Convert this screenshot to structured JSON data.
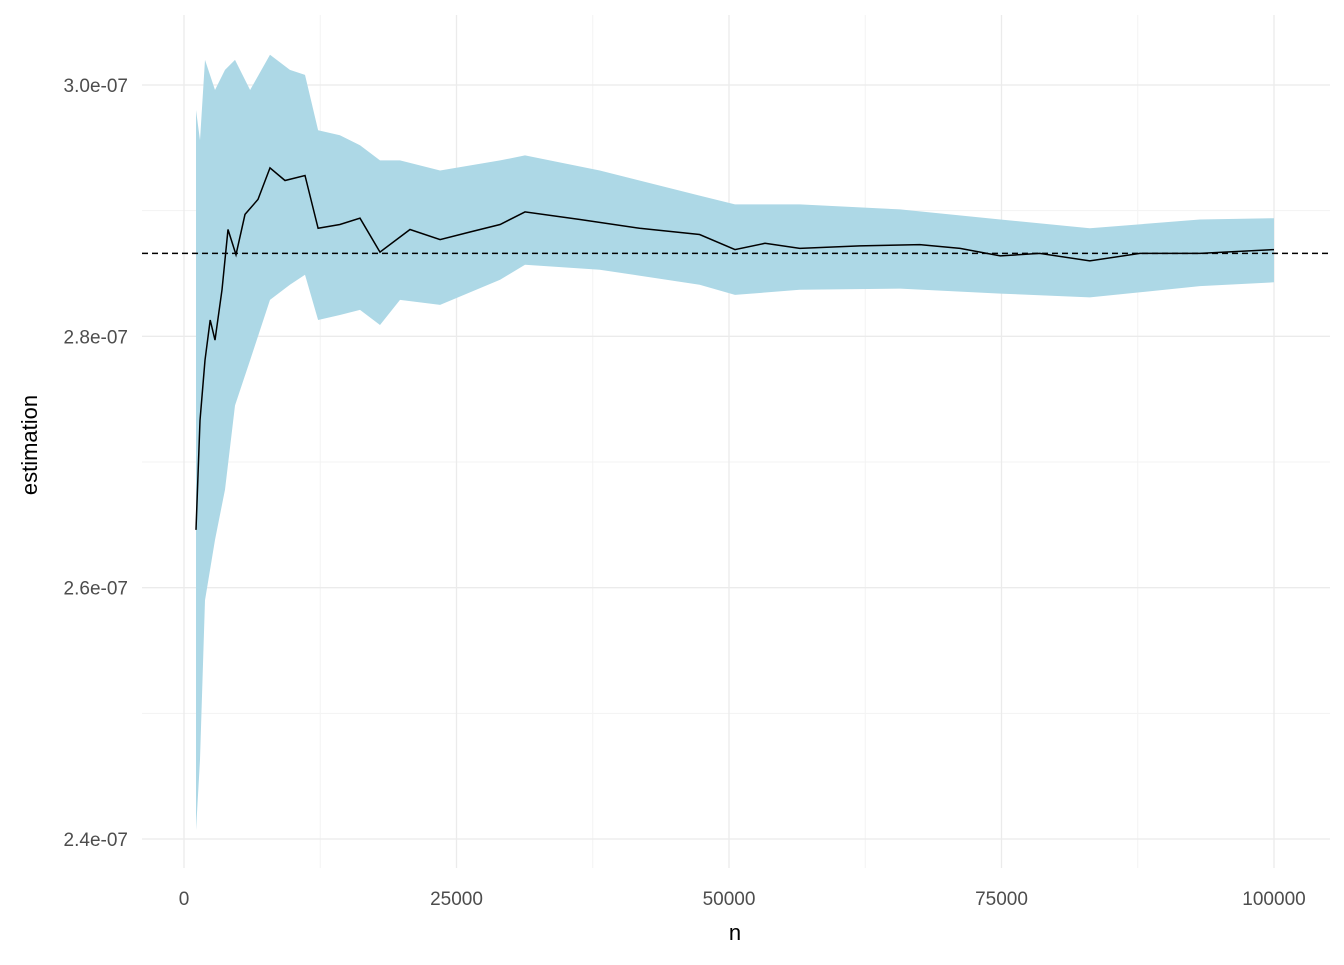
{
  "chart_data": {
    "type": "line",
    "title": "",
    "xlabel": "n",
    "ylabel": "estimation",
    "xlim": [
      0,
      100000
    ],
    "ylim": [
      2.4e-07,
      3e-07
    ],
    "x_ticks": [
      0,
      25000,
      50000,
      75000,
      100000
    ],
    "x_tick_labels": [
      "0",
      "25000",
      "50000",
      "75000",
      "100000"
    ],
    "y_ticks": [
      2.4e-07,
      2.6e-07,
      2.8e-07,
      3e-07
    ],
    "y_tick_labels": [
      "2.4e-07",
      "2.6e-07",
      "2.8e-07",
      "3.0e-07"
    ],
    "grid": true,
    "reference_line": {
      "value": 2.866e-07,
      "style": "dashed",
      "color": "#000000"
    },
    "colors": {
      "band": "#ADD8E6",
      "line": "#000000",
      "grid": "#EBEBEB"
    },
    "series": [
      {
        "name": "estimation",
        "x": [
          1100,
          1470,
          1930,
          2400,
          2840,
          3490,
          4040,
          4770,
          5600,
          6790,
          7890,
          9270,
          11100,
          12300,
          14300,
          16150,
          17980,
          20730,
          23500,
          26240,
          29000,
          31280,
          36330,
          41800,
          47300,
          50550,
          53300,
          56500,
          62000,
          67500,
          71200,
          74900,
          78500,
          83100,
          87700,
          93200,
          100000
        ],
        "y": [
          2.646e-07,
          2.733e-07,
          2.781e-07,
          2.813e-07,
          2.797e-07,
          2.837e-07,
          2.885e-07,
          2.865e-07,
          2.897e-07,
          2.909e-07,
          2.934e-07,
          2.924e-07,
          2.928e-07,
          2.886e-07,
          2.889e-07,
          2.894e-07,
          2.867e-07,
          2.885e-07,
          2.877e-07,
          2.883e-07,
          2.889e-07,
          2.899e-07,
          2.893e-07,
          2.886e-07,
          2.881e-07,
          2.869e-07,
          2.874e-07,
          2.87e-07,
          2.872e-07,
          2.873e-07,
          2.87e-07,
          2.864e-07,
          2.866e-07,
          2.86e-07,
          2.866e-07,
          2.866e-07,
          2.869e-07
        ]
      },
      {
        "name": "confidence-band",
        "x": [
          1100,
          1470,
          1930,
          2840,
          3760,
          4680,
          6060,
          7890,
          9720,
          11100,
          12300,
          14300,
          16150,
          17980,
          19820,
          23500,
          29000,
          31280,
          38150,
          47300,
          50550,
          56500,
          65690,
          74900,
          83100,
          93200,
          100000
        ],
        "lower": [
          2.407e-07,
          2.463e-07,
          2.59e-07,
          2.638e-07,
          2.678e-07,
          2.745e-07,
          2.781e-07,
          2.829e-07,
          2.841e-07,
          2.849e-07,
          2.813e-07,
          2.817e-07,
          2.821e-07,
          2.809e-07,
          2.829e-07,
          2.825e-07,
          2.845e-07,
          2.857e-07,
          2.853e-07,
          2.841e-07,
          2.833e-07,
          2.837e-07,
          2.838e-07,
          2.834e-07,
          2.831e-07,
          2.84e-07,
          2.843e-07
        ],
        "upper": [
          2.98e-07,
          2.956e-07,
          3.02e-07,
          2.996e-07,
          3.012e-07,
          3.02e-07,
          2.996e-07,
          3.024e-07,
          3.012e-07,
          3.008e-07,
          2.964e-07,
          2.96e-07,
          2.952e-07,
          2.94e-07,
          2.94e-07,
          2.932e-07,
          2.94e-07,
          2.944e-07,
          2.932e-07,
          2.912e-07,
          2.905e-07,
          2.905e-07,
          2.901e-07,
          2.893e-07,
          2.886e-07,
          2.893e-07,
          2.894e-07
        ]
      }
    ]
  }
}
